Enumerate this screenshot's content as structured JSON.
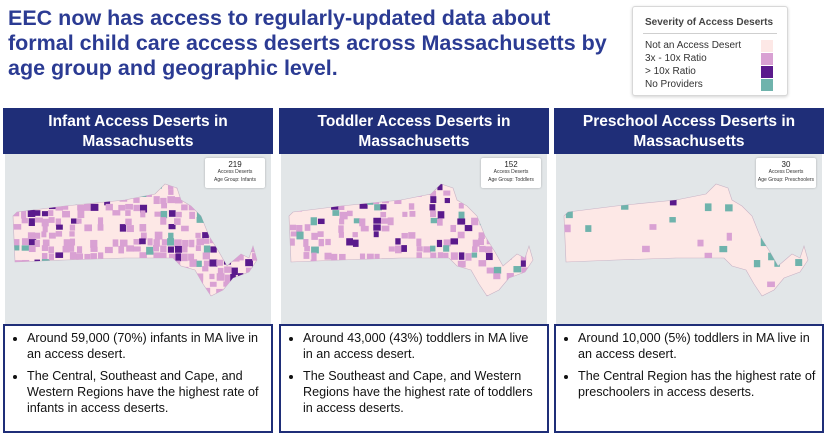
{
  "headline": "EEC now has access to regularly-updated data about formal child care access deserts across Massachusetts by age group and geographic level.",
  "legend": {
    "title": "Severity of Access Deserts",
    "items": [
      {
        "label": "Not an Access Desert",
        "color": "#fde8e6"
      },
      {
        "label": "3x - 10x Ratio",
        "color": "#d9a1d3"
      },
      {
        "label": "> 10x Ratio",
        "color": "#5a1a8c"
      },
      {
        "label": "No Providers",
        "color": "#6fb3ac"
      }
    ]
  },
  "panels": [
    {
      "title": "Infant Access Deserts in Massachusetts",
      "count": "219",
      "count_label": "Access Deserts",
      "age_group": "Age Group: Infants",
      "bullets": [
        "Around 59,000 (70%) infants in MA live in an access desert.",
        "The Central, Southeast and Cape, and Western Regions have the highest rate of infants in access deserts."
      ],
      "map_density": 0.7
    },
    {
      "title": "Toddler Access Deserts in Massachusetts",
      "count": "152",
      "count_label": "Access Deserts",
      "age_group": "Age Group: Toddlers",
      "bullets": [
        "Around 43,000 (43%) toddlers in MA live in an access desert.",
        "The Southeast and Cape, and Western Regions have the highest rate of toddlers in access deserts."
      ],
      "map_density": 0.43
    },
    {
      "title": "Preschool Access Deserts in Massachusetts",
      "count": "30",
      "count_label": "Access Deserts",
      "age_group": "Age Group: Preschoolers",
      "bullets": [
        "Around 10,000 (5%) toddlers in MA live in an access desert.",
        "The Central Region has the highest rate of preschoolers in access deserts."
      ],
      "map_density": 0.05
    }
  ]
}
